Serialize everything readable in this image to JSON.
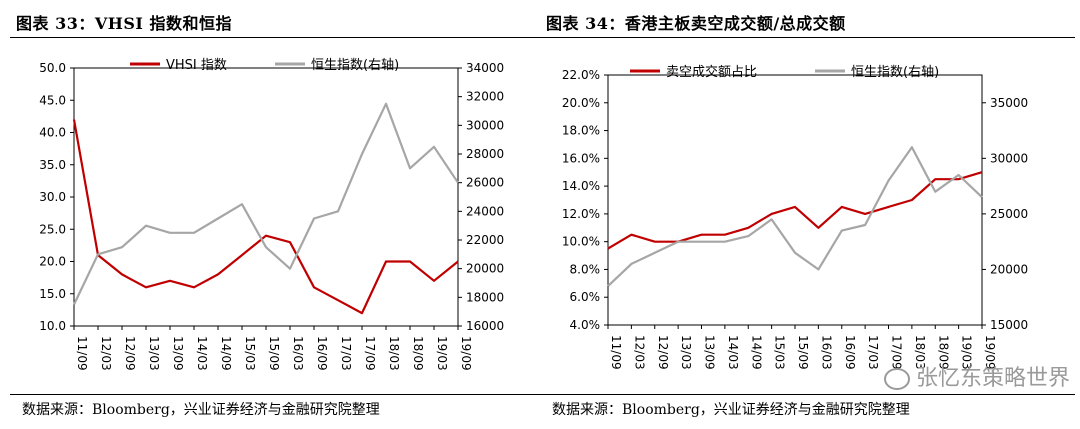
{
  "panels": [
    {
      "title": "图表 33：VHSI 指数和恒指",
      "source": "数据来源：Bloomberg，兴业证券经济与金融研究院整理"
    },
    {
      "title": "图表 34：香港主板卖空成交额/总成交额",
      "source": "数据来源：Bloomberg，兴业证券经济与金融研究院整理"
    }
  ],
  "watermark": {
    "text": "张忆东策略世界",
    "icon": "wechat-icon"
  },
  "chart_data": [
    {
      "type": "line",
      "x": [
        "11/09",
        "12/03",
        "12/09",
        "13/03",
        "13/09",
        "14/03",
        "14/09",
        "15/03",
        "15/09",
        "16/03",
        "16/09",
        "17/03",
        "17/09",
        "18/03",
        "18/09",
        "19/03",
        "19/09"
      ],
      "legend_position": "top",
      "grid": false,
      "y_left": {
        "ylim": [
          10.0,
          50.0
        ],
        "ticks": [
          "10.0",
          "15.0",
          "20.0",
          "25.0",
          "30.0",
          "35.0",
          "40.0",
          "45.0",
          "50.0"
        ]
      },
      "y_right": {
        "ylim": [
          16000,
          34000
        ],
        "ticks": [
          "16000",
          "18000",
          "20000",
          "22000",
          "24000",
          "26000",
          "28000",
          "30000",
          "32000",
          "34000"
        ]
      },
      "series": [
        {
          "name": "VHSI 指数",
          "axis": "left",
          "color": "#c00000",
          "values": [
            42,
            21,
            18,
            16,
            17,
            16,
            18,
            21,
            24,
            23,
            16,
            14,
            12,
            20,
            20,
            17,
            20
          ]
        },
        {
          "name": "恒生指数(右轴)",
          "axis": "right",
          "color": "#a6a6a6",
          "values": [
            17500,
            21000,
            21500,
            23000,
            22500,
            22500,
            23500,
            24500,
            21500,
            20000,
            23500,
            24000,
            28000,
            31500,
            27000,
            28500,
            26000
          ]
        }
      ]
    },
    {
      "type": "line",
      "x": [
        "11/09",
        "12/03",
        "12/09",
        "13/03",
        "13/09",
        "14/03",
        "14/09",
        "15/03",
        "15/09",
        "16/03",
        "16/09",
        "17/03",
        "17/09",
        "18/03",
        "18/09",
        "19/03",
        "19/09"
      ],
      "legend_position": "top",
      "grid": false,
      "y_left": {
        "ylim": [
          4.0,
          22.0
        ],
        "ticks": [
          "4.0%",
          "6.0%",
          "8.0%",
          "10.0%",
          "12.0%",
          "14.0%",
          "16.0%",
          "18.0%",
          "20.0%",
          "22.0%"
        ]
      },
      "y_right": {
        "ylim": [
          15000,
          37500
        ],
        "ticks": [
          "15000",
          "20000",
          "25000",
          "30000",
          "35000"
        ]
      },
      "series": [
        {
          "name": "卖空成交额占比",
          "axis": "left",
          "color": "#c00000",
          "values": [
            9.5,
            10.5,
            10.0,
            10.0,
            10.5,
            10.5,
            11.0,
            12.0,
            12.5,
            11.0,
            12.5,
            12.0,
            12.5,
            13.0,
            14.5,
            14.5,
            15.0
          ]
        },
        {
          "name": "恒生指数(右轴)",
          "axis": "right",
          "color": "#a6a6a6",
          "values": [
            18500,
            20500,
            21500,
            22500,
            22500,
            22500,
            23000,
            24500,
            21500,
            20000,
            23500,
            24000,
            28000,
            31000,
            27000,
            28500,
            26500
          ]
        }
      ]
    }
  ]
}
